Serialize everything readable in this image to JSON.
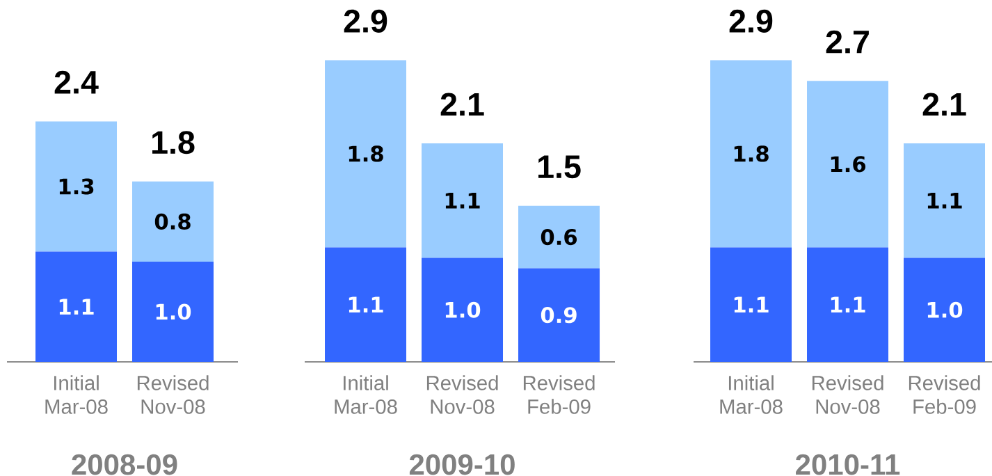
{
  "chart_data": [
    {
      "type": "bar",
      "stacked": true,
      "title": "2008-09",
      "categories": [
        "Initial Mar-08",
        "Revised Nov-08"
      ],
      "series": [
        {
          "color": "#3366ff",
          "values": [
            1.1,
            1.0
          ],
          "value_labels": [
            "1.1",
            "1.0"
          ]
        },
        {
          "color": "#99ccff",
          "values": [
            1.3,
            0.8
          ],
          "value_labels": [
            "1.3",
            "0.8"
          ]
        }
      ],
      "totals": [
        "2.4",
        "1.8"
      ]
    },
    {
      "type": "bar",
      "stacked": true,
      "title": "2009-10",
      "categories": [
        "Initial Mar-08",
        "Revised Nov-08",
        "Revised Feb-09"
      ],
      "series": [
        {
          "color": "#3366ff",
          "values": [
            1.1,
            1.0,
            0.9
          ],
          "value_labels": [
            "1.1",
            "1.0",
            "0.9"
          ]
        },
        {
          "color": "#99ccff",
          "values": [
            1.8,
            1.1,
            0.6
          ],
          "value_labels": [
            "1.8",
            "1.1",
            "0.6"
          ]
        }
      ],
      "totals": [
        "2.9",
        "2.1",
        "1.5"
      ]
    },
    {
      "type": "bar",
      "stacked": true,
      "title": "2010-11",
      "categories": [
        "Initial Mar-08",
        "Revised Nov-08",
        "Revised Feb-09"
      ],
      "series": [
        {
          "color": "#3366ff",
          "values": [
            1.1,
            1.1,
            1.0
          ],
          "value_labels": [
            "1.1",
            "1.1",
            "1.0"
          ]
        },
        {
          "color": "#99ccff",
          "values": [
            1.8,
            1.6,
            1.1
          ],
          "value_labels": [
            "1.8",
            "1.6",
            "1.1"
          ]
        }
      ],
      "totals": [
        "2.9",
        "2.7",
        "2.1"
      ]
    }
  ]
}
